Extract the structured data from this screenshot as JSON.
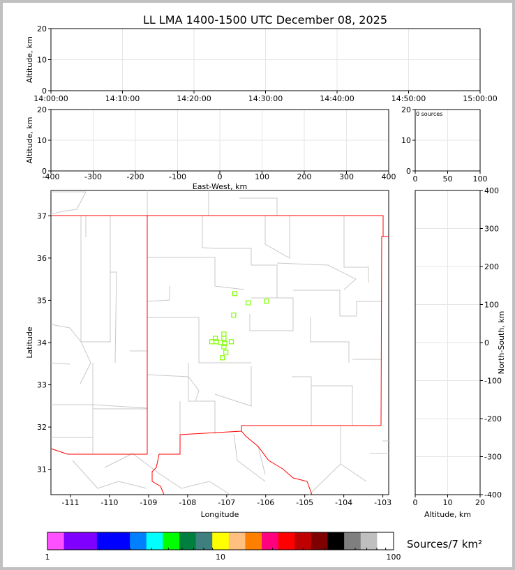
{
  "title": "LL LMA 1400-1500 UTC December 08, 2025",
  "chart_data": [
    {
      "id": "time-height",
      "type": "scatter",
      "xlabel": "",
      "ylabel": "Altitude, km",
      "xticks": [
        "14:00:00",
        "14:10:00",
        "14:20:00",
        "14:30:00",
        "14:40:00",
        "14:50:00",
        "15:00:00"
      ],
      "yticks": [
        0,
        10,
        20
      ],
      "ylim": [
        0,
        20
      ],
      "grid": true,
      "points": []
    },
    {
      "id": "ew-height",
      "type": "scatter",
      "xlabel": "East-West, km",
      "ylabel": "Altitude, km",
      "xlim": [
        -400,
        400
      ],
      "xticks": [
        -400,
        -300,
        -200,
        -100,
        0,
        100,
        200,
        300,
        400
      ],
      "ylim": [
        0,
        20
      ],
      "yticks": [
        0,
        10,
        20
      ],
      "grid": true,
      "points": []
    },
    {
      "id": "histogram",
      "type": "bar",
      "annotation": "0 sources",
      "xlim": [
        0,
        100
      ],
      "xticks": [
        0,
        50,
        100
      ],
      "ylim": [
        0,
        20
      ],
      "yticks": [
        0,
        10,
        20
      ],
      "grid": true
    },
    {
      "id": "plan-view",
      "type": "scatter",
      "xlabel": "Longitude",
      "ylabel": "Latitude",
      "xlim": [
        -111.5,
        -102.85
      ],
      "ylim": [
        30.4,
        37.6
      ],
      "xticks": [
        -111,
        -110,
        -109,
        -108,
        -107,
        -106,
        -105,
        -104,
        -103
      ],
      "yticks": [
        31,
        32,
        33,
        34,
        35,
        36,
        37
      ],
      "marker_color": "#7fff00",
      "points": [
        [
          -106.79,
          35.16
        ],
        [
          -106.45,
          34.94
        ],
        [
          -105.98,
          34.98
        ],
        [
          -106.82,
          34.65
        ],
        [
          -107.07,
          34.2
        ],
        [
          -107.29,
          34.1
        ],
        [
          -107.07,
          34.1
        ],
        [
          -107.38,
          34.02
        ],
        [
          -107.27,
          34.02
        ],
        [
          -107.16,
          34.0
        ],
        [
          -107.05,
          33.98
        ],
        [
          -106.88,
          34.02
        ],
        [
          -107.07,
          33.9
        ],
        [
          -107.02,
          33.77
        ],
        [
          -107.11,
          33.64
        ]
      ]
    },
    {
      "id": "ns-height",
      "type": "scatter",
      "xlabel": "Altitude, km",
      "ylabel": "North-South, km",
      "xlim": [
        0,
        20
      ],
      "xticks": [
        0,
        10,
        20
      ],
      "ylim": [
        -400,
        400
      ],
      "yticks": [
        -400,
        -300,
        -200,
        -100,
        0,
        100,
        200,
        300,
        400
      ],
      "grid": true,
      "points": []
    }
  ],
  "colorbar": {
    "label": "Sources/7 km²",
    "ticks": [
      "1",
      "10",
      "100"
    ],
    "colors": [
      "#ff50ff",
      "#7f00ff",
      "#7f00ff",
      "#0000ff",
      "#0000ff",
      "#007fff",
      "#00ffff",
      "#00ff00",
      "#007f3f",
      "#3f7f7f",
      "#ffff00",
      "#ffbf7f",
      "#ff7f00",
      "#ff007f",
      "#ff0000",
      "#bf0000",
      "#7f0000",
      "#000000",
      "#7f7f7f",
      "#bfbfbf",
      "#ffffff"
    ]
  }
}
